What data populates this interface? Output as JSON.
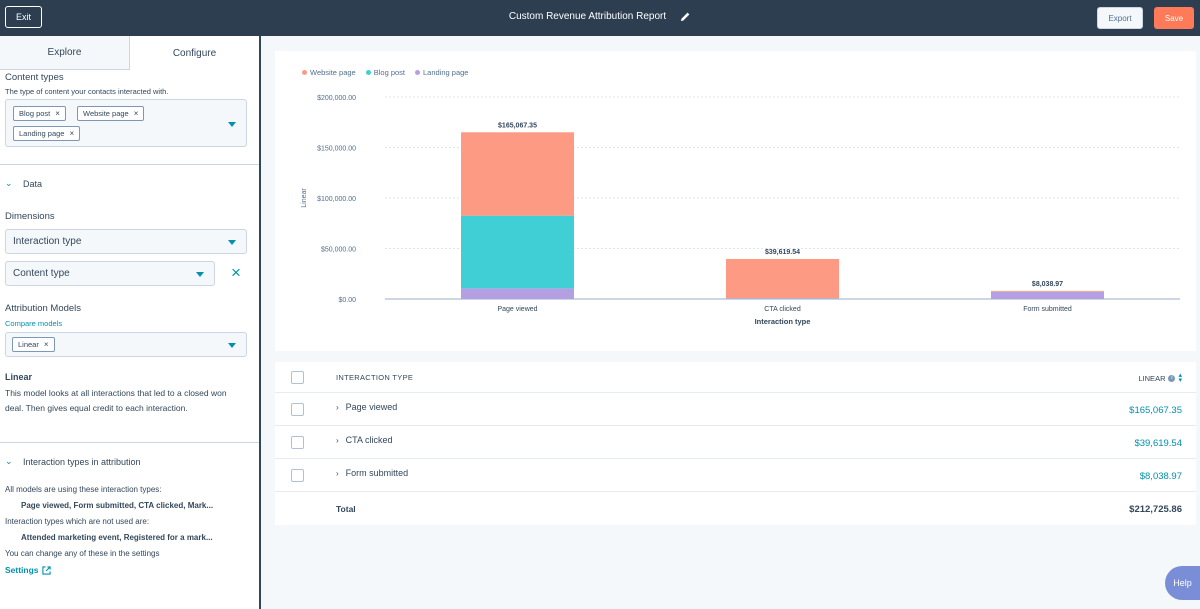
{
  "topbar": {
    "exit_label": "Exit",
    "title": "Custom Revenue Attribution Report",
    "export_label": "Export",
    "save_label": "Save",
    "save_color": "#ff7a59",
    "background": "#2d3e50"
  },
  "sidebar": {
    "tabs": [
      {
        "label": "Explore",
        "active": false
      },
      {
        "label": "Configure",
        "active": true
      }
    ],
    "content_types": {
      "label": "Content types",
      "help": "The type of content your contacts interacted with.",
      "tags": [
        "Blog post",
        "Website page",
        "Landing page"
      ]
    },
    "data_section": {
      "label": "Data",
      "dimensions_label": "Dimensions",
      "dimension_selects": [
        "Interaction type",
        "Content type"
      ]
    },
    "attribution": {
      "label": "Attribution Models",
      "compare_link": "Compare models",
      "selected_tag": "Linear",
      "model_name": "Linear",
      "model_description": "This model looks at all interactions that led to a closed won deal. Then gives equal credit to each interaction."
    },
    "interaction_types": {
      "label": "Interaction types in attribution",
      "line1": "All models are using these interaction types:",
      "used": "Page viewed, Form submitted, CTA clicked, Mark...",
      "line2": "Interaction types which are not used are:",
      "unused": "Attended marketing event, Registered for a mark...",
      "line3": "You can change any of these in the settings",
      "settings_link": "Settings"
    }
  },
  "chart_data": {
    "type": "bar",
    "stacked": true,
    "categories": [
      "Page viewed",
      "CTA clicked",
      "Form submitted"
    ],
    "series": [
      {
        "name": "Landing page",
        "color": "#b59fe3",
        "values": [
          10500,
          500,
          7000
        ]
      },
      {
        "name": "Blog post",
        "color": "#3fcfd5",
        "values": [
          72000,
          300,
          200
        ]
      },
      {
        "name": "Website page",
        "color": "#fd9a84",
        "values": [
          82567.35,
          38819.54,
          838.97
        ]
      }
    ],
    "totals_labels": [
      "$165,067.35",
      "$39,619.54",
      "$8,038.97"
    ],
    "totals": [
      165067.35,
      39619.54,
      8038.97
    ],
    "legend": [
      "Website page",
      "Blog post",
      "Landing page"
    ],
    "legend_colors": [
      "#fd9a84",
      "#3fcfd5",
      "#b59fe3"
    ],
    "y_ticks": [
      "$0.00",
      "$50,000.00",
      "$100,000.00",
      "$150,000.00",
      "$200,000.00"
    ],
    "y_tick_values": [
      0,
      50000,
      100000,
      150000,
      200000
    ],
    "ylim": [
      0,
      200000
    ],
    "ylabel": "Linear",
    "xlabel": "Interaction type",
    "legend_position": "top-left",
    "grid": true
  },
  "table": {
    "header_type": "INTERACTION TYPE",
    "header_value": "LINEAR",
    "rows": [
      {
        "label": "Page viewed",
        "value": "$165,067.35"
      },
      {
        "label": "CTA clicked",
        "value": "$39,619.54"
      },
      {
        "label": "Form submitted",
        "value": "$8,038.97"
      }
    ],
    "total_label": "Total",
    "total_value": "$212,725.86"
  },
  "help_label": "Help"
}
